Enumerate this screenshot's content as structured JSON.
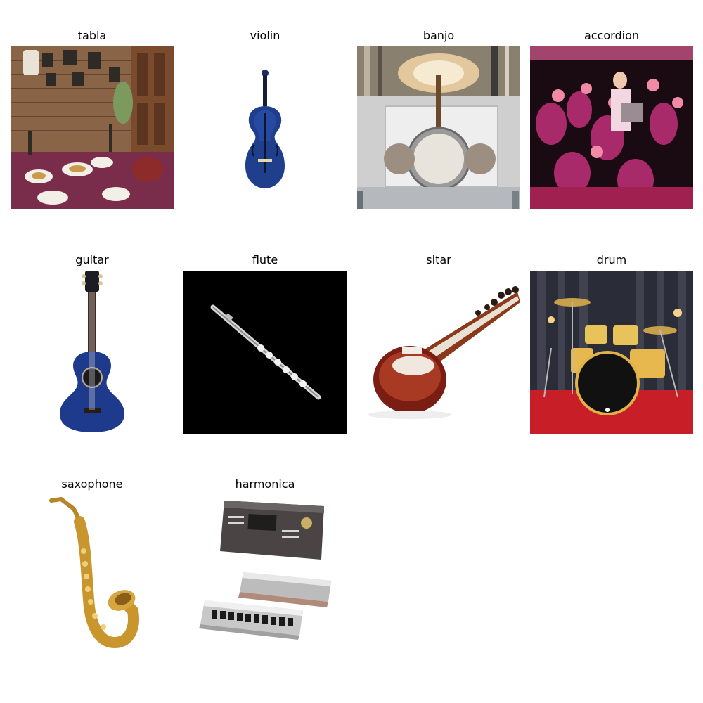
{
  "grid": {
    "items": [
      {
        "label": "tabla",
        "image": "tabla-image"
      },
      {
        "label": "violin",
        "image": "violin-image"
      },
      {
        "label": "banjo",
        "image": "banjo-image"
      },
      {
        "label": "accordion",
        "image": "accordion-image"
      },
      {
        "label": "guitar",
        "image": "guitar-image"
      },
      {
        "label": "flute",
        "image": "flute-image"
      },
      {
        "label": "sitar",
        "image": "sitar-image"
      },
      {
        "label": "drum",
        "image": "drum-image"
      },
      {
        "label": "saxophone",
        "image": "saxophone-image"
      },
      {
        "label": "harmonica",
        "image": "harmonica-image"
      }
    ]
  }
}
